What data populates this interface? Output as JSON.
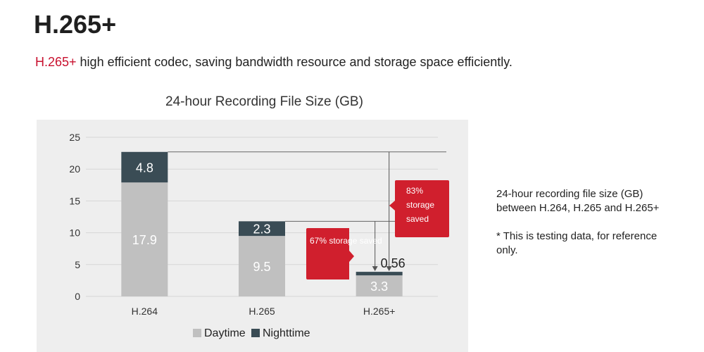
{
  "header": {
    "title": "H.265+",
    "subtitle_highlight": "H.265+",
    "subtitle_rest": " high efficient codec, saving bandwidth resource and storage space efficiently."
  },
  "side_note": {
    "description": "24-hour recording file size (GB) between H.264, H.265 and H.265+",
    "disclaimer": "* This is testing data, for reference only."
  },
  "colors": {
    "daytime": "#c0c0c0",
    "nighttime": "#3a4c55",
    "callout": "#d01f2d",
    "accent_text": "#c8102e",
    "panel": "#eeeeee"
  },
  "chart_data": {
    "type": "bar",
    "stacked": true,
    "title": "24-hour Recording File Size (GB)",
    "categories": [
      "H.264",
      "H.265",
      "H.265+"
    ],
    "series": [
      {
        "name": "Daytime",
        "values": [
          17.9,
          9.5,
          3.3
        ],
        "labels": [
          "17.9",
          "9.5",
          "3.3"
        ]
      },
      {
        "name": "Nighttime",
        "values": [
          4.8,
          2.3,
          0.56
        ],
        "labels": [
          "4.8",
          "2.3",
          "0.56"
        ]
      }
    ],
    "ylim": [
      0,
      25
    ],
    "yticks": [
      0,
      5,
      10,
      15,
      20,
      25
    ],
    "grid": true,
    "legend": "bottom",
    "annotations": [
      {
        "text_lines": [
          "83%",
          "storage",
          "saved"
        ],
        "from_category": "H.264",
        "to_category": "H.265+"
      },
      {
        "text_lines": [
          "67% storage saved"
        ],
        "from_category": "H.265",
        "to_category": "H.265+"
      }
    ]
  }
}
